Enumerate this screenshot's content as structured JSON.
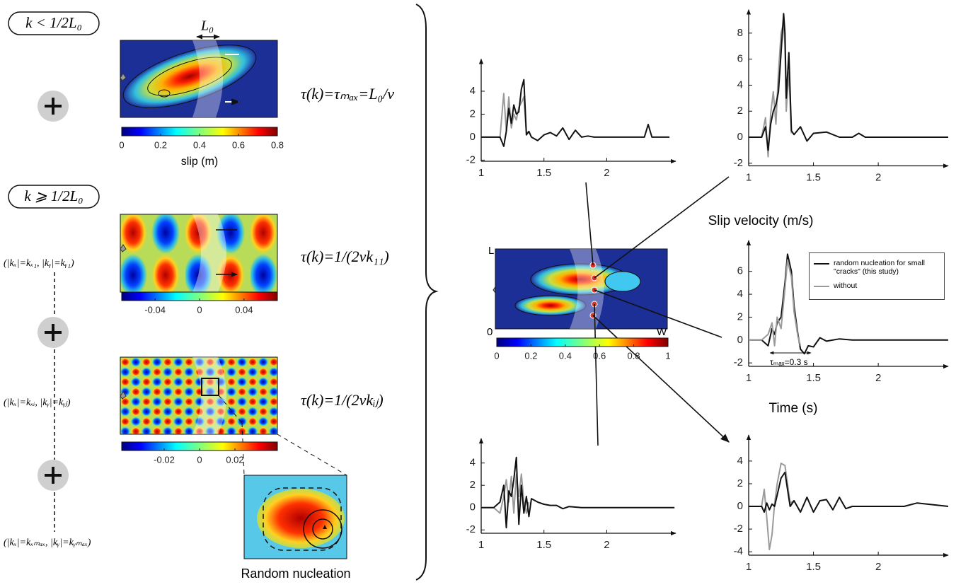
{
  "figure": {
    "left_panel": {
      "case1": "k < 1/2L₀",
      "L0": "L₀",
      "tau1": "τ(k)=τₘₐₓ=L₀/v",
      "case2": "k ⩾ 1/2L₀",
      "mode1": "(|kₓ|=kₓ₁,  |kᵧ|=kᵧ₁)",
      "tau2": "τ(k)=1/(2vk₁₁)",
      "mode_ij": "(|kₓ|=kₓᵢ,  |kᵧ|=kᵧⱼ)",
      "tau3": "τ(k)=1/(2vkᵢⱼ)",
      "mode_max": "(|kₓ|=kₓₘₐₓ,  |kᵧ|=kᵧₘₐₓ)",
      "zoom_label": "Random nucleation"
    },
    "colorbars": [
      {
        "lim": [
          0,
          0.8
        ],
        "ticks": [
          0,
          0.2,
          0.4,
          0.6,
          0.8
        ],
        "label": "slip (m)"
      },
      {
        "lim": [
          -0.07,
          0.07
        ],
        "ticks": [
          -0.04,
          0,
          0.04
        ]
      },
      {
        "lim": [
          -0.044,
          0.044
        ],
        "ticks": [
          -0.02,
          0,
          0.02
        ]
      },
      {
        "lim": [
          0,
          1
        ],
        "ticks": [
          0,
          0.2,
          0.4,
          0.6,
          0.8,
          1
        ]
      }
    ],
    "map_labels": {
      "L": "L",
      "origin": "0",
      "W": "W"
    }
  },
  "chart_data": [
    {
      "type": "line",
      "xlim": [
        1,
        2.55
      ],
      "ylim": [
        -2.1,
        6.8
      ],
      "xticks": [
        1,
        1.5,
        2
      ],
      "yticks": [
        -2,
        0,
        2,
        4
      ],
      "x": [
        1.0,
        1.15,
        1.18,
        1.2,
        1.22,
        1.24,
        1.26,
        1.28,
        1.3,
        1.32,
        1.34,
        1.36,
        1.38,
        1.4,
        1.45,
        1.5,
        1.55,
        1.6,
        1.65,
        1.7,
        1.75,
        1.8,
        1.85,
        1.9,
        2.0,
        2.1,
        2.2,
        2.3,
        2.33,
        2.36,
        2.4,
        2.5
      ],
      "series": [
        {
          "color": "#9a9a9a",
          "values": [
            0,
            0,
            3.8,
            0.5,
            3.5,
            0.8,
            2.0,
            1.5,
            2.6,
            3.0,
            3.5,
            0.3,
            0.5,
            null,
            null,
            null,
            null,
            null,
            null,
            null,
            null,
            null,
            null,
            null,
            null,
            null,
            null,
            null,
            null,
            null,
            null,
            null
          ]
        },
        {
          "color": "#111111",
          "values": [
            0,
            0,
            -0.8,
            0.5,
            2.5,
            1.2,
            2.8,
            2.0,
            2.2,
            4.2,
            5.0,
            0.2,
            0.5,
            0,
            -0.3,
            0.2,
            0.4,
            0.1,
            0.8,
            -0.2,
            0.6,
            0,
            0.1,
            0,
            0,
            0,
            0,
            0,
            1.1,
            0,
            0,
            0
          ]
        }
      ]
    },
    {
      "type": "line",
      "xlim": [
        1,
        2.54
      ],
      "ylim": [
        -2.2,
        9.8
      ],
      "xticks": [
        1,
        1.5,
        2
      ],
      "yticks": [
        -2,
        0,
        2,
        4,
        6,
        8
      ],
      "x": [
        1.0,
        1.1,
        1.13,
        1.15,
        1.17,
        1.19,
        1.21,
        1.23,
        1.25,
        1.27,
        1.28,
        1.29,
        1.31,
        1.33,
        1.35,
        1.4,
        1.45,
        1.5,
        1.6,
        1.7,
        1.8,
        1.85,
        1.9,
        2.0,
        2.2,
        2.54
      ],
      "series": [
        {
          "color": "#9a9a9a",
          "values": [
            0,
            0,
            1.5,
            -1.5,
            1.8,
            3.5,
            1.0,
            5.0,
            8.0,
            8.8,
            7.0,
            2.0,
            5.0,
            0.3,
            null,
            null,
            null,
            null,
            null,
            null,
            null,
            null,
            null,
            null,
            null,
            null
          ]
        },
        {
          "color": "#111111",
          "values": [
            0,
            0,
            0.8,
            -1.0,
            1.0,
            2.0,
            2.5,
            3.5,
            6.5,
            9.5,
            8.0,
            3.0,
            6.5,
            0.5,
            0.2,
            0.8,
            -0.3,
            0.3,
            0.4,
            0,
            0,
            0.3,
            0,
            0,
            0,
            0
          ]
        }
      ]
    },
    {
      "type": "line",
      "xlim": [
        1,
        2.54
      ],
      "ylim": [
        -2.3,
        8.7
      ],
      "xticks": [
        1,
        1.5,
        2
      ],
      "yticks": [
        -2,
        0,
        2,
        4,
        6
      ],
      "ylabel": "Slip velocity (m/s)",
      "xlabel": "Time (s)",
      "annotation": "τₘₐₓ=0.3 s",
      "legend": "upper right",
      "x": [
        1.0,
        1.1,
        1.15,
        1.18,
        1.2,
        1.22,
        1.25,
        1.28,
        1.3,
        1.33,
        1.35,
        1.38,
        1.4,
        1.43,
        1.46,
        1.5,
        1.55,
        1.6,
        1.7,
        1.8,
        2.0,
        2.54
      ],
      "series": [
        {
          "name": "random nucleation for small \"cracks\" (this study)",
          "color": "#111111",
          "values": [
            0,
            0,
            -0.5,
            1.0,
            0.5,
            1.5,
            2.0,
            5.0,
            7.5,
            6.0,
            3.0,
            0.5,
            -0.8,
            -1.2,
            -0.5,
            -0.6,
            0.2,
            -0.1,
            0.1,
            0,
            0,
            0
          ]
        },
        {
          "name": "without",
          "color": "#9a9a9a",
          "values": [
            0,
            0,
            0.5,
            1.5,
            -0.5,
            2.0,
            1.0,
            4.5,
            7.0,
            5.5,
            2.5,
            0.3,
            -0.5,
            null,
            null,
            null,
            null,
            null,
            null,
            null,
            null,
            null
          ]
        }
      ]
    },
    {
      "type": "line",
      "xlim": [
        1,
        2.55
      ],
      "ylim": [
        -2.3,
        6.2
      ],
      "xticks": [
        1,
        1.5,
        2
      ],
      "yticks": [
        -2,
        0,
        2,
        4
      ],
      "x": [
        1.0,
        1.1,
        1.15,
        1.18,
        1.2,
        1.22,
        1.24,
        1.26,
        1.28,
        1.3,
        1.32,
        1.34,
        1.36,
        1.38,
        1.4,
        1.45,
        1.5,
        1.55,
        1.6,
        1.65,
        1.7,
        1.8,
        2.0,
        2.54
      ],
      "series": [
        {
          "color": "#9a9a9a",
          "values": [
            0,
            0,
            -0.5,
            1.0,
            2.5,
            0.5,
            2.8,
            -0.5,
            3.0,
            1.0,
            3.0,
            0.5,
            -0.5,
            0.5,
            null,
            null,
            null,
            null,
            null,
            null,
            null,
            null,
            null,
            null
          ]
        },
        {
          "color": "#111111",
          "values": [
            0,
            0,
            0.5,
            2.0,
            -1.8,
            1.5,
            1.0,
            2.5,
            4.5,
            -1.5,
            2.0,
            -0.5,
            1.0,
            -0.8,
            0.8,
            0.5,
            0.3,
            0.2,
            0.2,
            -0.1,
            0.1,
            0,
            0,
            0
          ]
        }
      ]
    },
    {
      "type": "line",
      "xlim": [
        1,
        2.54
      ],
      "ylim": [
        -4.3,
        6.3
      ],
      "xticks": [
        1,
        1.5,
        2
      ],
      "yticks": [
        -4,
        -2,
        0,
        2,
        4
      ],
      "x": [
        1.0,
        1.1,
        1.12,
        1.14,
        1.16,
        1.18,
        1.2,
        1.22,
        1.25,
        1.28,
        1.3,
        1.32,
        1.35,
        1.4,
        1.45,
        1.5,
        1.55,
        1.6,
        1.65,
        1.7,
        1.75,
        1.8,
        2.0,
        2.2,
        2.3,
        2.54
      ],
      "series": [
        {
          "color": "#9a9a9a",
          "values": [
            0,
            0,
            1.5,
            -1.0,
            -3.8,
            -2.5,
            0.2,
            2.0,
            3.8,
            3.6,
            2.0,
            0.3,
            0.5,
            null,
            null,
            null,
            null,
            null,
            null,
            null,
            null,
            null,
            null,
            null,
            null,
            null
          ]
        },
        {
          "color": "#111111",
          "values": [
            0,
            0,
            -0.5,
            0.3,
            -0.3,
            0.2,
            0,
            1.0,
            2.5,
            3.0,
            1.5,
            0,
            0.5,
            -0.5,
            0.8,
            -0.5,
            0.5,
            0.6,
            -0.3,
            0.8,
            -0.2,
            0,
            0,
            0,
            0.3,
            0
          ]
        }
      ]
    }
  ]
}
